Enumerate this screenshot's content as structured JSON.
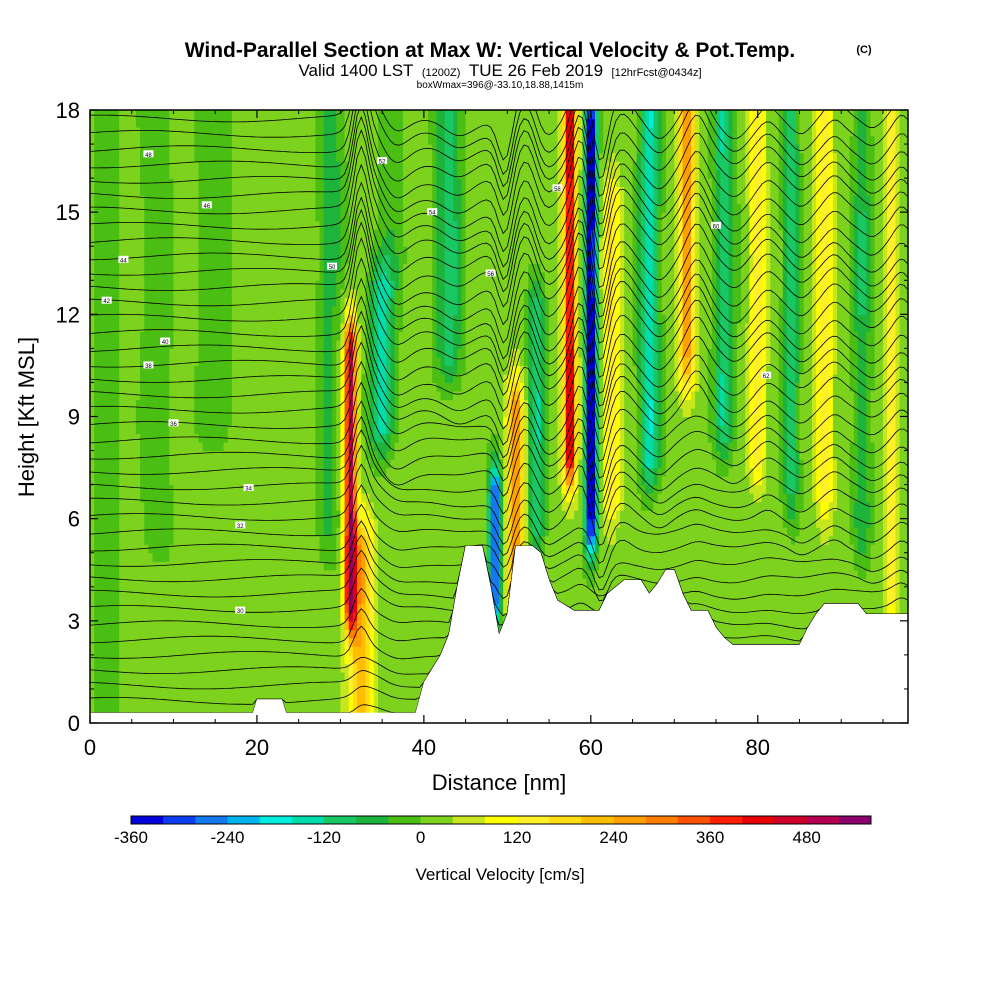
{
  "chart_data": {
    "type": "heatmap",
    "title": "Wind-Parallel Section at Max W: Vertical Velocity & Pot.Temp.",
    "copyright": "(C)",
    "subtitle_main": "Valid 1400 LST",
    "subtitle_utc": "(1200Z)",
    "subtitle_date": "TUE 26 Feb 2019",
    "subtitle_fcst": "[12hrFcst@0434z]",
    "box_info": "boxWmax=396@-33.10,18.88,1415m",
    "xlabel": "Distance [nm]",
    "ylabel": "Height [Kft MSL]",
    "xlim": [
      0,
      98
    ],
    "ylim": [
      0,
      18
    ],
    "x_ticks": [
      0,
      20,
      40,
      60,
      80
    ],
    "y_ticks": [
      0,
      3,
      6,
      9,
      12,
      15,
      18
    ],
    "colorbar": {
      "label": "Vertical Velocity [cm/s]",
      "min": -360,
      "max": 520,
      "step": 40,
      "tick_labels": [
        "-360",
        "-240",
        "-120",
        "0",
        "120",
        "240",
        "360",
        "480"
      ],
      "colors": [
        "#0000dd",
        "#0a3cf0",
        "#1478f0",
        "#00b4f0",
        "#00eedd",
        "#00dcaa",
        "#19c864",
        "#1eb43c",
        "#4bbe14",
        "#7dd21e",
        "#c8e61e",
        "#ffff00",
        "#fff028",
        "#ffdc14",
        "#ffbe00",
        "#ffa000",
        "#ff7d00",
        "#ff5000",
        "#ff1e00",
        "#e60000",
        "#cc0028",
        "#b40050",
        "#8c006e"
      ]
    },
    "terrain": [
      {
        "x": 0,
        "z": 0.3
      },
      {
        "x": 19.5,
        "z": 0.3
      },
      {
        "x": 20,
        "z": 0.7
      },
      {
        "x": 23,
        "z": 0.7
      },
      {
        "x": 23.5,
        "z": 0.3
      },
      {
        "x": 39,
        "z": 0.3
      },
      {
        "x": 40,
        "z": 1.2
      },
      {
        "x": 41,
        "z": 1.6
      },
      {
        "x": 42,
        "z": 2
      },
      {
        "x": 43,
        "z": 2.6
      },
      {
        "x": 44,
        "z": 4
      },
      {
        "x": 45,
        "z": 5.2
      },
      {
        "x": 47,
        "z": 5.2
      },
      {
        "x": 48,
        "z": 4
      },
      {
        "x": 49,
        "z": 2.6
      },
      {
        "x": 50,
        "z": 3.2
      },
      {
        "x": 51,
        "z": 5.2
      },
      {
        "x": 53,
        "z": 5.2
      },
      {
        "x": 54,
        "z": 5
      },
      {
        "x": 55,
        "z": 4.2
      },
      {
        "x": 56,
        "z": 3.6
      },
      {
        "x": 58,
        "z": 3.3
      },
      {
        "x": 61,
        "z": 3.3
      },
      {
        "x": 62,
        "z": 3.8
      },
      {
        "x": 64,
        "z": 4.2
      },
      {
        "x": 66,
        "z": 4.2
      },
      {
        "x": 67,
        "z": 3.8
      },
      {
        "x": 68,
        "z": 4.1
      },
      {
        "x": 69,
        "z": 4.5
      },
      {
        "x": 70,
        "z": 4.5
      },
      {
        "x": 71,
        "z": 3.8
      },
      {
        "x": 72,
        "z": 3.3
      },
      {
        "x": 74,
        "z": 3.3
      },
      {
        "x": 75,
        "z": 2.8
      },
      {
        "x": 76,
        "z": 2.5
      },
      {
        "x": 77,
        "z": 2.3
      },
      {
        "x": 85,
        "z": 2.3
      },
      {
        "x": 86,
        "z": 2.8
      },
      {
        "x": 87,
        "z": 3.2
      },
      {
        "x": 88,
        "z": 3.5
      },
      {
        "x": 92,
        "z": 3.5
      },
      {
        "x": 93,
        "z": 3.2
      },
      {
        "x": 98,
        "z": 3.2
      }
    ],
    "w_features": [
      {
        "x": 31.2,
        "z0": 3.8,
        "z1": 10.8,
        "amp": 470,
        "sx": 0.7
      },
      {
        "x": 32.5,
        "z0": 0.5,
        "z1": 5.0,
        "amp": 220,
        "sx": 1.4
      },
      {
        "x": 35.0,
        "z0": 9.0,
        "z1": 12.5,
        "amp": -160,
        "sx": 1.5
      },
      {
        "x": 28.5,
        "z0": 6.0,
        "z1": 12.0,
        "amp": -70,
        "sx": 1.2
      },
      {
        "x": 48.5,
        "z0": 4.0,
        "z1": 6.5,
        "amp": -330,
        "sx": 0.7
      },
      {
        "x": 51.0,
        "z0": 4.0,
        "z1": 9.0,
        "amp": 270,
        "sx": 1.0
      },
      {
        "x": 53.5,
        "z0": 6.0,
        "z1": 12.0,
        "amp": -140,
        "sx": 1.0
      },
      {
        "x": 57.5,
        "z0": 8.0,
        "z1": 18.0,
        "amp": 420,
        "sx": 0.8
      },
      {
        "x": 60.0,
        "z0": 6.0,
        "z1": 17.5,
        "amp": -390,
        "sx": 0.7
      },
      {
        "x": 62.5,
        "z0": 7.0,
        "z1": 15.0,
        "amp": 150,
        "sx": 1.0
      },
      {
        "x": 67.0,
        "z0": 8.0,
        "z1": 18.0,
        "amp": -180,
        "sx": 1.2
      },
      {
        "x": 71.5,
        "z0": 11.0,
        "z1": 18.0,
        "amp": 250,
        "sx": 1.0
      },
      {
        "x": 76.0,
        "z0": 9.0,
        "z1": 18.0,
        "amp": -140,
        "sx": 1.2
      },
      {
        "x": 80.0,
        "z0": 8.0,
        "z1": 18.0,
        "amp": 120,
        "sx": 1.0
      },
      {
        "x": 84.0,
        "z0": 7.0,
        "z1": 18.0,
        "amp": -110,
        "sx": 1.0
      },
      {
        "x": 88.0,
        "z0": 7.0,
        "z1": 18.0,
        "amp": 130,
        "sx": 1.0
      },
      {
        "x": 92.5,
        "z0": 6.0,
        "z1": 18.0,
        "amp": -100,
        "sx": 1.0
      },
      {
        "x": 96.0,
        "z0": 4.0,
        "z1": 18.0,
        "amp": 130,
        "sx": 0.8
      },
      {
        "x": 43.0,
        "z0": 11.0,
        "z1": 18.0,
        "amp": -120,
        "sx": 1.5
      },
      {
        "x": 36.0,
        "z0": 14.0,
        "z1": 18.0,
        "amp": -50,
        "sx": 1.5
      },
      {
        "x": 29.0,
        "z0": 14.0,
        "z1": 18.0,
        "amp": -80,
        "sx": 1.5
      },
      {
        "x": 15.0,
        "z0": 9.0,
        "z1": 18.0,
        "amp": -50,
        "sx": 2.0
      },
      {
        "x": 8.0,
        "z0": 6.0,
        "z1": 18.0,
        "amp": -40,
        "sx": 2.0
      },
      {
        "x": 2.0,
        "z0": 0.0,
        "z1": 18.0,
        "amp": -50,
        "sx": 1.5
      }
    ],
    "isentropes": {
      "count": 40,
      "base_height": 0.2,
      "spacing": 0.45,
      "labels": [
        "30",
        "32",
        "34",
        "36",
        "38",
        "40",
        "42",
        "44",
        "46",
        "48",
        "50",
        "52",
        "54",
        "56",
        "58",
        "60",
        "62"
      ],
      "label_sites": [
        {
          "x": 18,
          "z": 3.3
        },
        {
          "x": 18,
          "z": 5.8
        },
        {
          "x": 19,
          "z": 6.9
        },
        {
          "x": 10,
          "z": 8.8
        },
        {
          "x": 7,
          "z": 10.5
        },
        {
          "x": 9,
          "z": 11.2
        },
        {
          "x": 2,
          "z": 12.4
        },
        {
          "x": 4,
          "z": 13.6
        },
        {
          "x": 14,
          "z": 15.2
        },
        {
          "x": 7,
          "z": 16.7
        },
        {
          "x": 29,
          "z": 13.4
        },
        {
          "x": 35,
          "z": 16.5
        },
        {
          "x": 41,
          "z": 15.0
        },
        {
          "x": 48,
          "z": 13.2
        },
        {
          "x": 56,
          "z": 15.7
        },
        {
          "x": 75,
          "z": 14.6
        },
        {
          "x": 81,
          "z": 10.2
        }
      ]
    }
  }
}
